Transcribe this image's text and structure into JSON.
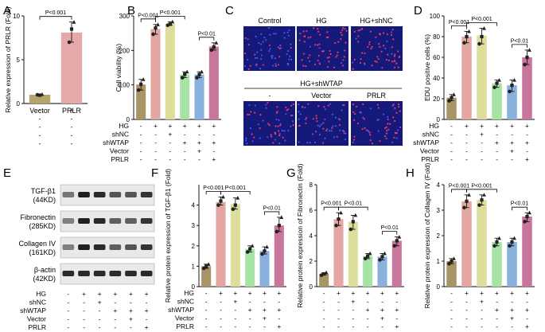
{
  "colors": {
    "vector": "#b5a46b",
    "prlr": "#e6a9a9",
    "control": "#a89565",
    "hg": "#e3a6a2",
    "hg_shnc": "#dede9c",
    "hg_shwtap": "#a8e3a6",
    "hg_shwtap_vector": "#8ab0dd",
    "hg_shwtap_prlr": "#c9769d",
    "micro_blue": "#15197a",
    "micro_dot": "#ff3b6a"
  },
  "panel_letters": [
    "A",
    "B",
    "C",
    "D",
    "E",
    "F",
    "G",
    "H"
  ],
  "conditions": {
    "rows": [
      "HG",
      "shNC",
      "shWTAP",
      "Vector",
      "PRLR"
    ],
    "signs": [
      [
        "-",
        "+",
        "+",
        "+",
        "+",
        "+"
      ],
      [
        "-",
        "-",
        "+",
        "-",
        "-",
        "-"
      ],
      [
        "-",
        "-",
        "-",
        "+",
        "+",
        "+"
      ],
      [
        "-",
        "-",
        "-",
        "-",
        "+",
        "-"
      ],
      [
        "-",
        "-",
        "-",
        "-",
        "-",
        "+"
      ]
    ]
  },
  "chart_data": [
    {
      "panel": "A",
      "type": "bar",
      "categories": [
        "Vector",
        "PRLR"
      ],
      "values": [
        1.0,
        8.1
      ],
      "points": [
        [
          1.0,
          0.95,
          1.05
        ],
        [
          7.0,
          8.5,
          9.3
        ]
      ],
      "ylabel": "Relative expression of PRLR (Fold)",
      "ylim": [
        0,
        10
      ],
      "yticks": [
        0,
        5,
        10
      ],
      "brackets": [
        {
          "from": 0,
          "to": 1,
          "label": "P<0.001"
        }
      ]
    },
    {
      "panel": "B",
      "type": "bar",
      "categories": [
        "Control",
        "HG",
        "HG+shNC",
        "HG+shWTAP",
        "HG+shWTAP+Vector",
        "HG+shWTAP+PRLR"
      ],
      "values": [
        101,
        262,
        277,
        130,
        130,
        211
      ],
      "points": [
        [
          85,
          102,
          116
        ],
        [
          247,
          265,
          275
        ],
        [
          273,
          276,
          283
        ],
        [
          121,
          131,
          138
        ],
        [
          121,
          130,
          138
        ],
        [
          201,
          210,
          222
        ]
      ],
      "ylabel": "Cell viability (%)",
      "ylim": [
        0,
        300
      ],
      "yticks": [
        0,
        100,
        200,
        300
      ],
      "brackets": [
        {
          "from": 0,
          "to": 1,
          "label": "P<0.001"
        },
        {
          "from": 1,
          "to": 3,
          "label": "P<0.001"
        },
        {
          "from": 4,
          "to": 5,
          "label": "P<0.01"
        }
      ]
    },
    {
      "panel": "D",
      "type": "bar",
      "categories": [
        "Control",
        "HG",
        "HG+shNC",
        "HG+shWTAP",
        "HG+shWTAP+Vector",
        "HG+shWTAP+PRLR"
      ],
      "values": [
        21,
        80,
        81,
        35,
        33,
        60
      ],
      "points": [
        [
          18,
          21,
          24
        ],
        [
          74,
          80,
          85
        ],
        [
          73,
          80,
          88
        ],
        [
          31,
          35,
          38
        ],
        [
          27,
          33,
          38
        ],
        [
          53,
          60,
          67
        ]
      ],
      "ylabel": "EDU positive cells (%)",
      "ylim": [
        0,
        100
      ],
      "yticks": [
        0,
        20,
        40,
        60,
        80,
        100
      ],
      "brackets": [
        {
          "from": 0,
          "to": 1,
          "label": "P<0.001"
        },
        {
          "from": 1,
          "to": 3,
          "label": "P<0.001"
        },
        {
          "from": 4,
          "to": 5,
          "label": "P<0.01"
        }
      ]
    },
    {
      "panel": "F",
      "type": "bar",
      "categories": [
        "Control",
        "HG",
        "HG+shNC",
        "HG+shWTAP",
        "HG+shWTAP+Vector",
        "HG+shWTAP+PRLR"
      ],
      "values": [
        1.0,
        4.15,
        4.05,
        1.85,
        1.75,
        3.0
      ],
      "points": [
        [
          0.9,
          1.0,
          1.1
        ],
        [
          4.0,
          4.2,
          4.4
        ],
        [
          3.8,
          4.0,
          4.35
        ],
        [
          1.7,
          1.85,
          2.0
        ],
        [
          1.6,
          1.75,
          1.95
        ],
        [
          2.7,
          3.0,
          3.4
        ]
      ],
      "ylabel": "Relative protein expression of TGF-β1 (Fold)",
      "ylim": [
        0,
        5
      ],
      "yticks": [
        0,
        1,
        2,
        3,
        4
      ],
      "brackets": [
        {
          "from": 0,
          "to": 1,
          "label": "P<0.001"
        },
        {
          "from": 1,
          "to": 3,
          "label": "P<0.001"
        },
        {
          "from": 4,
          "to": 5,
          "label": "P<0.01"
        }
      ]
    },
    {
      "panel": "G",
      "type": "bar",
      "categories": [
        "Control",
        "HG",
        "HG+shNC",
        "HG+shWTAP",
        "HG+shWTAP+Vector",
        "HG+shWTAP+PRLR"
      ],
      "values": [
        1.0,
        5.3,
        5.1,
        2.4,
        2.35,
        3.6
      ],
      "points": [
        [
          0.9,
          1.0,
          1.1
        ],
        [
          4.8,
          5.3,
          5.8
        ],
        [
          4.5,
          5.1,
          5.6
        ],
        [
          2.2,
          2.4,
          2.6
        ],
        [
          2.1,
          2.35,
          2.6
        ],
        [
          3.2,
          3.6,
          3.9
        ]
      ],
      "ylabel": "Relative protein expression of Fibronectin (Fold)",
      "ylim": [
        0,
        8
      ],
      "yticks": [
        0,
        2,
        4,
        6,
        8
      ],
      "brackets": [
        {
          "from": 0,
          "to": 1,
          "label": "P<0.001"
        },
        {
          "from": 1,
          "to": 3,
          "label": "P<0.01"
        },
        {
          "from": 4,
          "to": 5,
          "label": "P<0.01"
        }
      ]
    },
    {
      "panel": "H",
      "type": "bar",
      "categories": [
        "Control",
        "HG",
        "HG+shNC",
        "HG+shWTAP",
        "HG+shWTAP+Vector",
        "HG+shWTAP+PRLR"
      ],
      "values": [
        1.0,
        3.35,
        3.4,
        1.75,
        1.75,
        2.75
      ],
      "points": [
        [
          0.9,
          1.0,
          1.1
        ],
        [
          3.1,
          3.35,
          3.6
        ],
        [
          3.2,
          3.4,
          3.6
        ],
        [
          1.6,
          1.75,
          1.9
        ],
        [
          1.6,
          1.75,
          1.9
        ],
        [
          2.55,
          2.75,
          2.9
        ]
      ],
      "ylabel": "Relative protein expression of Collagen IV (Fold)",
      "ylim": [
        0,
        4
      ],
      "yticks": [
        0,
        1,
        2,
        3,
        4
      ],
      "brackets": [
        {
          "from": 0,
          "to": 1,
          "label": "P<0.001"
        },
        {
          "from": 1,
          "to": 3,
          "label": "P<0.001"
        },
        {
          "from": 4,
          "to": 5,
          "label": "P<0.01"
        }
      ]
    }
  ],
  "panel_c": {
    "top_labels": [
      "Control",
      "HG",
      "HG+shNC"
    ],
    "group_label": "HG+shWTAP",
    "bottom_labels": [
      "-",
      "Vector",
      "PRLR"
    ],
    "densities": [
      0.25,
      0.9,
      0.85,
      0.45,
      0.4,
      0.7
    ]
  },
  "panel_e": {
    "bands": [
      {
        "name": "TGF-β1",
        "kd": "(44KD)",
        "intensity": [
          0.55,
          0.95,
          0.9,
          0.7,
          0.7,
          0.85
        ]
      },
      {
        "name": "Fibronectin",
        "kd": "(285KD)",
        "intensity": [
          0.5,
          0.95,
          0.9,
          0.65,
          0.65,
          0.85
        ]
      },
      {
        "name": "Collagen IV",
        "kd": "(161KD)",
        "intensity": [
          0.5,
          0.95,
          0.9,
          0.65,
          0.7,
          0.85
        ]
      },
      {
        "name": "β-actin",
        "kd": "(42KD)",
        "intensity": [
          0.9,
          0.9,
          0.9,
          0.9,
          0.9,
          0.9
        ]
      }
    ]
  }
}
